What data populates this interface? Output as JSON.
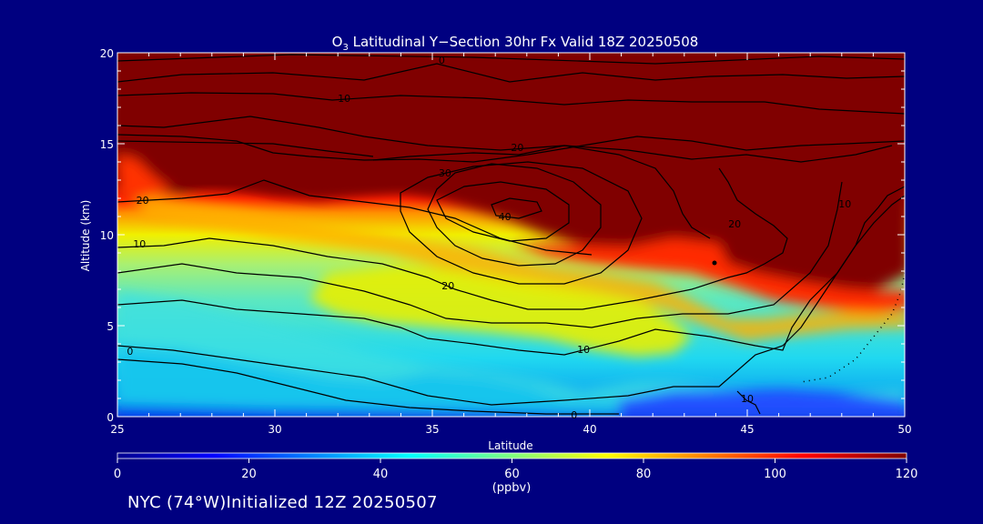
{
  "chart_data": {
    "type": "heatmap",
    "title": {
      "prefix": "O",
      "sub": "3",
      "rest": " Latitudinal Y−Section 30hr  Fx Valid 18Z 20250508"
    },
    "xlabel": "Latitude",
    "ylabel": "Altitude (km)",
    "xlim": [
      25,
      50
    ],
    "ylim": [
      0,
      20
    ],
    "xticks": [
      "25",
      "30",
      "35",
      "40",
      "45",
      "50"
    ],
    "yticks": [
      "0",
      "5",
      "10",
      "15",
      "20"
    ],
    "colorbar": {
      "min": 0,
      "max": 120,
      "ticks": [
        "0",
        "20",
        "40",
        "60",
        "80",
        "100",
        "120"
      ],
      "unit": "(ppbv)"
    },
    "contour_labels": [
      {
        "text": "0",
        "lat": 35.3,
        "alt": 19.6
      },
      {
        "text": "10",
        "lat": 32.2,
        "alt": 17.5
      },
      {
        "text": "20",
        "lat": 37.7,
        "alt": 14.8
      },
      {
        "text": "30",
        "lat": 35.4,
        "alt": 13.4
      },
      {
        "text": "40",
        "lat": 37.3,
        "alt": 11.0
      },
      {
        "text": "20",
        "lat": 25.8,
        "alt": 11.9
      },
      {
        "text": "10",
        "lat": 25.7,
        "alt": 9.5
      },
      {
        "text": "20",
        "lat": 35.5,
        "alt": 7.2
      },
      {
        "text": "20",
        "lat": 44.6,
        "alt": 10.6
      },
      {
        "text": "10",
        "lat": 48.1,
        "alt": 11.7
      },
      {
        "text": "10",
        "lat": 39.8,
        "alt": 3.7
      },
      {
        "text": "0",
        "lat": 25.4,
        "alt": 3.6
      },
      {
        "text": "0",
        "lat": 39.5,
        "alt": 0.1
      },
      {
        "text": "10",
        "lat": 45.0,
        "alt": 1.0
      }
    ]
  },
  "footer": {
    "text": "NYC (74°W)Initialized 12Z 20250507"
  },
  "colors": {
    "background": "#000080",
    "axis": "#ffffff",
    "contour": "#000000"
  }
}
